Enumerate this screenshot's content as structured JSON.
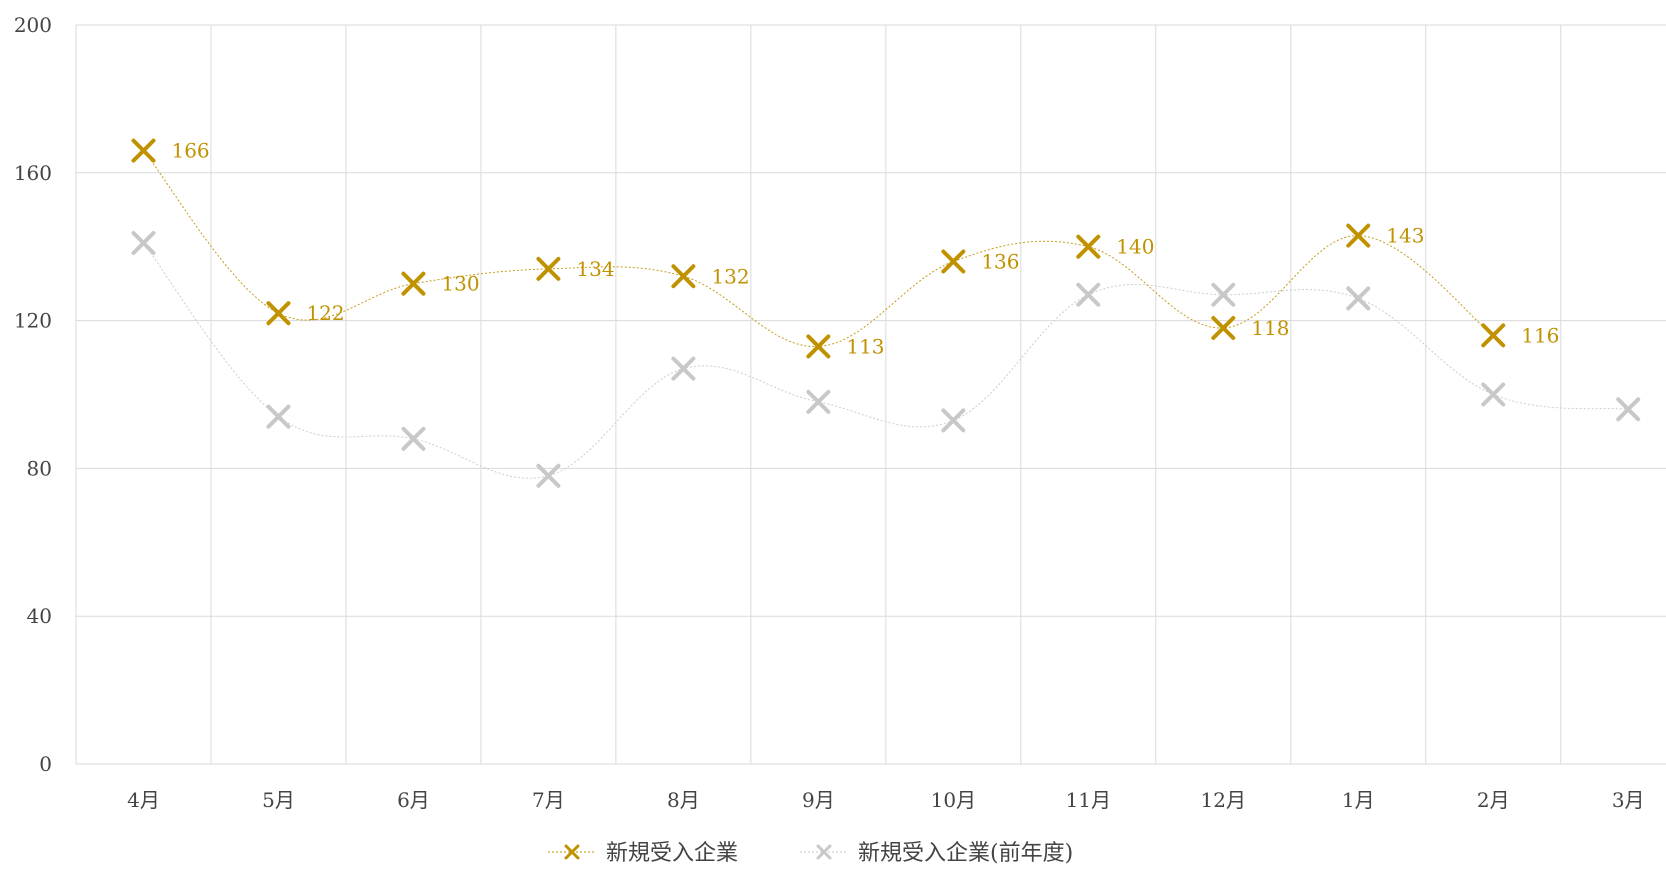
{
  "chart_data": {
    "type": "line",
    "categories": [
      "4月",
      "5月",
      "6月",
      "7月",
      "8月",
      "9月",
      "10月",
      "11月",
      "12月",
      "1月",
      "2月",
      "3月"
    ],
    "series": [
      {
        "name": "新規受入企業",
        "values": [
          166,
          122,
          130,
          134,
          132,
          113,
          136,
          140,
          118,
          143,
          116,
          null
        ],
        "color": "#C09200",
        "marker": "x",
        "data_labels": true
      },
      {
        "name": "新規受入企業(前年度)",
        "values": [
          141,
          94,
          88,
          78,
          107,
          98,
          93,
          127,
          127,
          126,
          100,
          96
        ],
        "color": "#C8C8C8",
        "marker": "x",
        "data_labels": false
      }
    ],
    "ylim": [
      0,
      200
    ],
    "yticks": [
      0,
      40,
      80,
      120,
      160,
      200
    ],
    "grid": true,
    "smooth": true,
    "legend_position": "bottom",
    "title": "",
    "xlabel": "",
    "ylabel": ""
  }
}
